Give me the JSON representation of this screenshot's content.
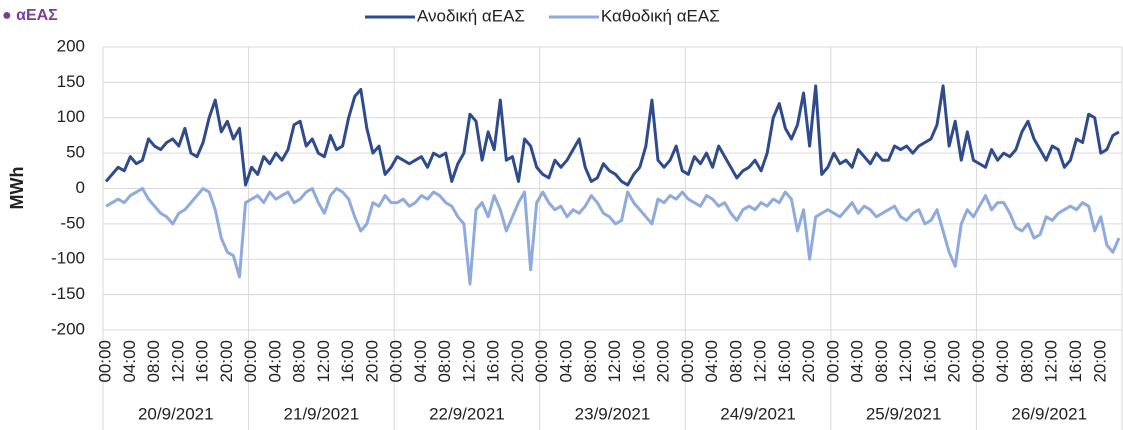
{
  "chart_data": {
    "type": "line",
    "title": "● αΕΑΣ",
    "ylabel": "MWh",
    "categories": [
      "00:00",
      null,
      null,
      null,
      "04:00",
      null,
      null,
      null,
      "08:00",
      null,
      null,
      null,
      "12:00",
      null,
      null,
      null,
      "16:00",
      null,
      null,
      null,
      "20:00",
      null,
      null,
      null,
      "00:00",
      null,
      null,
      null,
      "04:00",
      null,
      null,
      null,
      "08:00",
      null,
      null,
      null,
      "12:00",
      null,
      null,
      null,
      "16:00",
      null,
      null,
      null,
      "20:00",
      null,
      null,
      null,
      "00:00",
      null,
      null,
      null,
      "04:00",
      null,
      null,
      null,
      "08:00",
      null,
      null,
      null,
      "12:00",
      null,
      null,
      null,
      "16:00",
      null,
      null,
      null,
      "20:00",
      null,
      null,
      null,
      "00:00",
      null,
      null,
      null,
      "04:00",
      null,
      null,
      null,
      "08:00",
      null,
      null,
      null,
      "12:00",
      null,
      null,
      null,
      "16:00",
      null,
      null,
      null,
      "20:00",
      null,
      null,
      null,
      "00:00",
      null,
      null,
      null,
      "04:00",
      null,
      null,
      null,
      "08:00",
      null,
      null,
      null,
      "12:00",
      null,
      null,
      null,
      "16:00",
      null,
      null,
      null,
      "20:00",
      null,
      null,
      null,
      "00:00",
      null,
      null,
      null,
      "04:00",
      null,
      null,
      null,
      "08:00",
      null,
      null,
      null,
      "12:00",
      null,
      null,
      null,
      "16:00",
      null,
      null,
      null,
      "20:00",
      null,
      null,
      null,
      "00:00",
      null,
      null,
      null,
      "04:00",
      null,
      null,
      null,
      "08:00",
      null,
      null,
      null,
      "12:00",
      null,
      null,
      null,
      "16:00",
      null,
      null,
      null,
      "20:00",
      null,
      null,
      null
    ],
    "dates": [
      "20/9/2021",
      "21/9/2021",
      "22/9/2021",
      "23/9/2021",
      "24/9/2021",
      "25/9/2021",
      "26/9/2021"
    ],
    "series": [
      {
        "name": "Ανοδική αΕΑΣ",
        "color": "#2f4b8c",
        "values": [
          10,
          20,
          30,
          25,
          45,
          35,
          40,
          70,
          60,
          55,
          65,
          70,
          60,
          85,
          50,
          45,
          65,
          100,
          125,
          80,
          95,
          70,
          85,
          5,
          30,
          20,
          45,
          35,
          50,
          40,
          55,
          90,
          95,
          60,
          70,
          50,
          45,
          75,
          55,
          60,
          100,
          130,
          140,
          85,
          50,
          60,
          20,
          30,
          45,
          40,
          35,
          40,
          45,
          30,
          50,
          45,
          50,
          10,
          35,
          50,
          105,
          95,
          40,
          80,
          55,
          125,
          40,
          45,
          10,
          70,
          60,
          30,
          20,
          15,
          40,
          30,
          40,
          55,
          70,
          30,
          10,
          15,
          35,
          25,
          20,
          10,
          5,
          20,
          30,
          60,
          125,
          40,
          30,
          40,
          60,
          25,
          20,
          45,
          35,
          50,
          30,
          60,
          45,
          30,
          15,
          25,
          30,
          40,
          25,
          50,
          100,
          120,
          85,
          70,
          90,
          135,
          60,
          145,
          20,
          30,
          50,
          35,
          40,
          30,
          55,
          45,
          35,
          50,
          40,
          40,
          60,
          55,
          60,
          50,
          60,
          65,
          70,
          90,
          145,
          60,
          95,
          40,
          80,
          40,
          35,
          30,
          55,
          40,
          50,
          45,
          55,
          80,
          95,
          70,
          55,
          40,
          60,
          55,
          30,
          40,
          70,
          65,
          105,
          100,
          50,
          55,
          75,
          80
        ]
      },
      {
        "name": "Καθοδική αΕΑΣ",
        "color": "#8faadc",
        "values": [
          -25,
          -20,
          -15,
          -20,
          -10,
          -5,
          0,
          -15,
          -25,
          -35,
          -40,
          -50,
          -35,
          -30,
          -20,
          -10,
          0,
          -5,
          -30,
          -70,
          -90,
          -95,
          -125,
          -20,
          -15,
          -10,
          -20,
          -5,
          -15,
          -10,
          -5,
          -20,
          -15,
          -5,
          0,
          -20,
          -35,
          -10,
          0,
          -5,
          -15,
          -40,
          -60,
          -50,
          -20,
          -25,
          -10,
          -20,
          -20,
          -15,
          -25,
          -20,
          -10,
          -15,
          -5,
          -10,
          -20,
          -25,
          -40,
          -50,
          -135,
          -30,
          -20,
          -40,
          -10,
          -30,
          -60,
          -40,
          -20,
          -5,
          -115,
          -20,
          -5,
          -20,
          -30,
          -25,
          -40,
          -30,
          -35,
          -25,
          -10,
          -20,
          -35,
          -40,
          -50,
          -45,
          -5,
          -20,
          -30,
          -40,
          -50,
          -15,
          -20,
          -10,
          -15,
          -5,
          -15,
          -20,
          -25,
          -10,
          -15,
          -25,
          -20,
          -35,
          -45,
          -30,
          -25,
          -30,
          -20,
          -25,
          -15,
          -20,
          -5,
          -15,
          -60,
          -30,
          -100,
          -40,
          -35,
          -30,
          -35,
          -40,
          -30,
          -20,
          -35,
          -25,
          -30,
          -40,
          -35,
          -30,
          -25,
          -40,
          -45,
          -35,
          -30,
          -50,
          -45,
          -30,
          -60,
          -90,
          -110,
          -50,
          -30,
          -40,
          -25,
          -10,
          -30,
          -20,
          -20,
          -35,
          -55,
          -60,
          -50,
          -70,
          -65,
          -40,
          -45,
          -35,
          -30,
          -25,
          -30,
          -20,
          -25,
          -60,
          -40,
          -80,
          -90,
          -70
        ]
      }
    ],
    "ylim": [
      -200,
      200
    ],
    "yticks": [
      -200,
      -150,
      -100,
      -50,
      0,
      50,
      100,
      150,
      200
    ],
    "grid": true
  }
}
